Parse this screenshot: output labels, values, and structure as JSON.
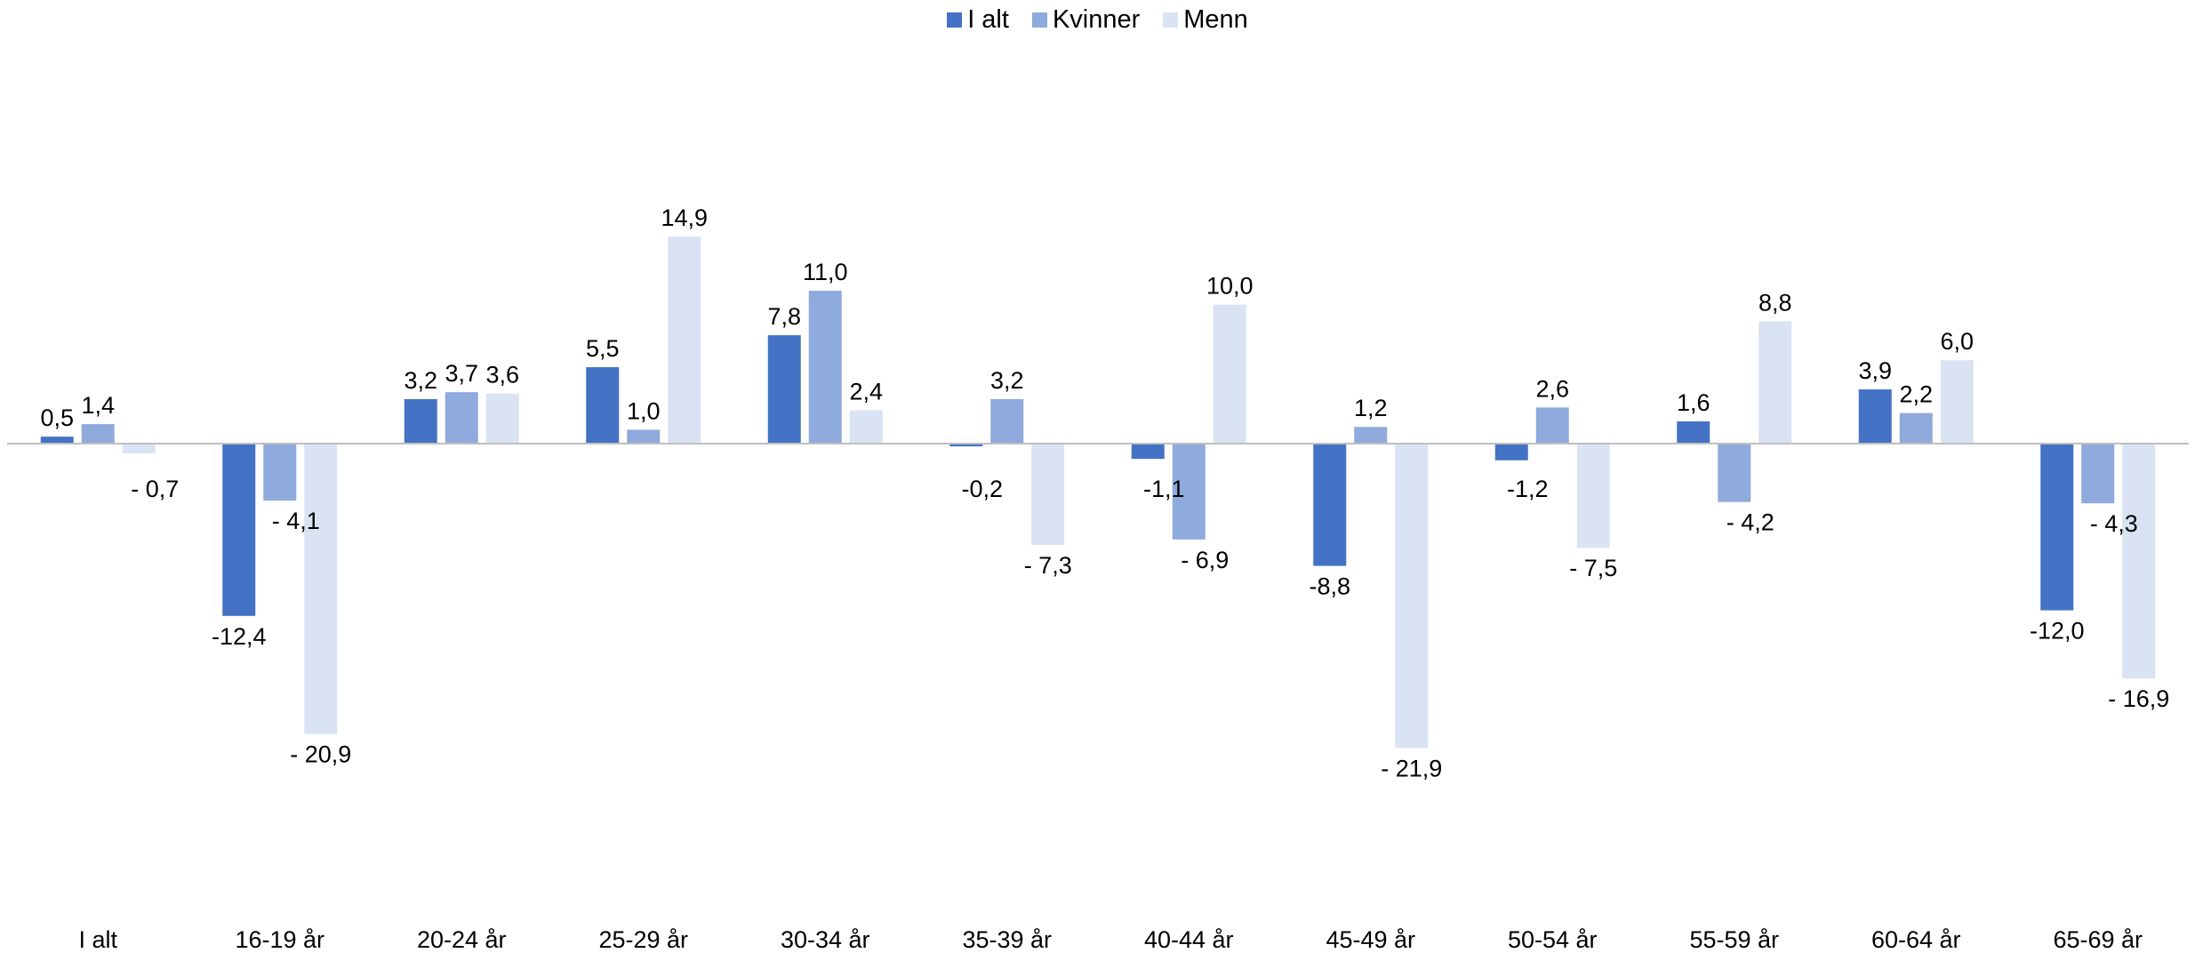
{
  "chart_data": {
    "type": "bar",
    "categories": [
      "I alt",
      "16-19 år",
      "20-24 år",
      "25-29 år",
      "30-34 år",
      "35-39 år",
      "40-44 år",
      "45-49 år",
      "50-54 år",
      "55-59 år",
      "60-64 år",
      "65-69 år"
    ],
    "series": [
      {
        "name": "I alt",
        "color": "#4472c4",
        "values": [
          0.5,
          -12.4,
          3.2,
          5.5,
          7.8,
          -0.2,
          -1.1,
          -8.8,
          -1.2,
          1.6,
          3.9,
          -12.0
        ],
        "labels": [
          "0,5",
          "-12,4",
          "3,2",
          "5,5",
          "7,8",
          "-0,2",
          "-1,1",
          "-8,8",
          "-1,2",
          "1,6",
          "3,9",
          "-12,0"
        ]
      },
      {
        "name": "Kvinner",
        "color": "#8faadc",
        "values": [
          1.4,
          -4.1,
          3.7,
          1.0,
          11.0,
          3.2,
          -6.9,
          1.2,
          2.6,
          -4.2,
          2.2,
          -4.3
        ],
        "labels": [
          "1,4",
          "- 4,1",
          "3,7",
          "1,0",
          "11,0",
          "3,2",
          "- 6,9",
          "1,2",
          "2,6",
          "- 4,2",
          "2,2",
          "- 4,3"
        ]
      },
      {
        "name": "Menn",
        "color": "#dae3f3",
        "values": [
          -0.7,
          -20.9,
          3.6,
          14.9,
          2.4,
          -7.3,
          10.0,
          -21.9,
          -7.5,
          8.8,
          6.0,
          -16.9
        ],
        "labels": [
          "- 0,7",
          "- 20,9",
          "3,6",
          "14,9",
          "2,4",
          "- 7,3",
          "10,0",
          "- 21,9",
          "- 7,5",
          "8,8",
          "6,0",
          "- 16,9"
        ]
      }
    ],
    "ylim": [
      -23,
      20
    ],
    "legend_position": "top-center",
    "grid": false
  }
}
